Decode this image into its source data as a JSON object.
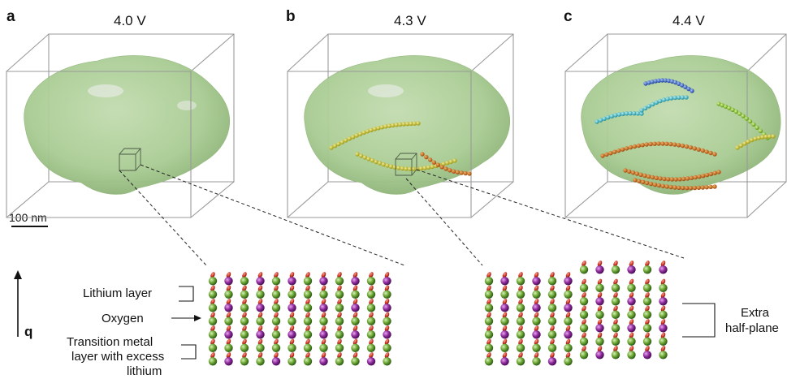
{
  "panels": [
    {
      "letter": "a",
      "voltage": "4.0 V"
    },
    {
      "letter": "b",
      "voltage": "4.3 V"
    },
    {
      "letter": "c",
      "voltage": "4.4 V"
    }
  ],
  "scale_bar": "100 nm",
  "axis_label": "q",
  "left_labels": {
    "lithium_layer": "Lithium layer",
    "oxygen": "Oxygen",
    "tm_line1": "Transition metal",
    "tm_line2": "layer with excess",
    "tm_line3": "lithium"
  },
  "right_label": {
    "line1": "Extra",
    "line2": "half-plane"
  },
  "colors": {
    "particle_fill": "#a9cc93",
    "lithium_green": "#6aa632",
    "tm_purple": "#8e2a9c",
    "oxygen_red": "#c8301e"
  }
}
